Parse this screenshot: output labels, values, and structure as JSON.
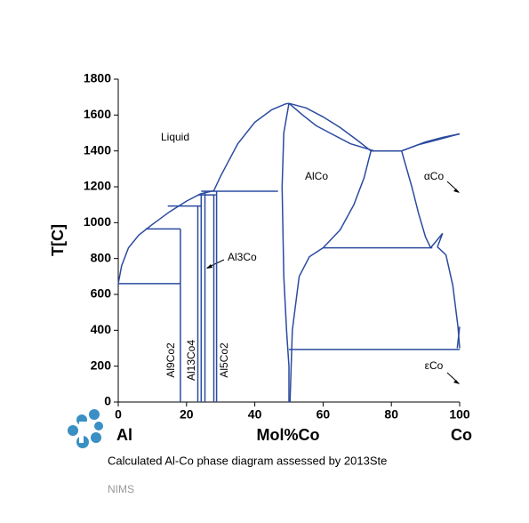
{
  "chart_data": {
    "type": "phase-diagram",
    "caption": "Calculated Al-Co phase diagram assessed by 2013Ste",
    "footer": "NIMS",
    "xlabel": "Mol%Co",
    "ylabel": "T[C]",
    "left_element": "Al",
    "right_element": "Co",
    "xlim": [
      0,
      100
    ],
    "ylim": [
      0,
      1800
    ],
    "xticks": [
      0,
      20,
      40,
      60,
      80,
      100
    ],
    "yticks": [
      0,
      200,
      400,
      600,
      800,
      1000,
      1200,
      1400,
      1600,
      1800
    ],
    "color": "#2b4ba0",
    "annotations": [
      "Liquid",
      "AlCo",
      "Al3Co",
      "αCo",
      "εCo",
      "Al9Co2",
      "Al13Co4",
      "Al5Co2"
    ],
    "lines": [
      {
        "x": [
          0,
          1,
          3,
          6,
          10,
          15,
          20,
          24,
          28,
          30,
          35,
          40,
          45,
          49,
          50
        ],
        "y": [
          660,
          760,
          860,
          930,
          990,
          1060,
          1120,
          1160,
          1178,
          1260,
          1440,
          1560,
          1630,
          1662,
          1665
        ]
      },
      {
        "x": [
          50,
          55,
          60,
          65,
          70,
          74
        ],
        "y": [
          1665,
          1640,
          1590,
          1530,
          1460,
          1400
        ]
      },
      {
        "x": [
          50,
          54,
          58,
          63,
          68,
          75
        ],
        "y": [
          1665,
          1600,
          1540,
          1490,
          1440,
          1400
        ]
      },
      {
        "x": [
          74,
          83
        ],
        "y": [
          1400,
          1400
        ]
      },
      {
        "x": [
          83,
          88,
          94,
          100
        ],
        "y": [
          1400,
          1435,
          1465,
          1495
        ]
      },
      {
        "x": [
          83,
          90,
          95,
          100
        ],
        "y": [
          1400,
          1450,
          1475,
          1495
        ]
      },
      {
        "x": [
          50,
          48.5,
          48,
          48.5,
          49.3,
          50,
          50
        ],
        "y": [
          1665,
          1500,
          1200,
          700,
          400,
          200,
          0
        ]
      },
      {
        "x": [
          50.3,
          51,
          53,
          56,
          60
        ],
        "y": [
          0,
          400,
          700,
          810,
          860
        ]
      },
      {
        "x": [
          60,
          65,
          69,
          72,
          74
        ],
        "y": [
          860,
          960,
          1100,
          1250,
          1400
        ]
      },
      {
        "x": [
          83,
          86,
          88,
          90,
          91.5
        ],
        "y": [
          1400,
          1200,
          1050,
          920,
          860
        ]
      },
      {
        "x": [
          91.5,
          95,
          93.5
        ],
        "y": [
          860,
          940,
          865
        ]
      },
      {
        "x": [
          93.5,
          96,
          98,
          99.5,
          100
        ],
        "y": [
          865,
          820,
          650,
          420,
          300
        ]
      },
      {
        "x": [
          99.3,
          100
        ],
        "y": [
          300,
          420
        ]
      },
      {
        "x": [
          60,
          92
        ],
        "y": [
          860,
          860
        ]
      },
      {
        "x": [
          50,
          100
        ],
        "y": [
          293,
          293
        ]
      },
      {
        "x": [
          0,
          18.2
        ],
        "y": [
          660,
          660
        ]
      },
      {
        "x": [
          8,
          18.2
        ],
        "y": [
          965,
          965
        ]
      },
      {
        "x": [
          14.5,
          24.5
        ],
        "y": [
          1093,
          1093
        ]
      },
      {
        "x": [
          23.5,
          28.6
        ],
        "y": [
          1155,
          1155
        ]
      },
      {
        "x": [
          24.3,
          46.8
        ],
        "y": [
          1175,
          1175
        ]
      },
      {
        "x": [
          18.2,
          18.2
        ],
        "y": [
          0,
          965
        ]
      },
      {
        "x": [
          23.3,
          23.3
        ],
        "y": [
          0,
          1093
        ]
      },
      {
        "x": [
          24.3,
          24.3
        ],
        "y": [
          0,
          1155
        ]
      },
      {
        "x": [
          25.4,
          25.4
        ],
        "y": [
          0,
          1175
        ]
      },
      {
        "x": [
          28,
          28
        ],
        "y": [
          0,
          1155
        ]
      },
      {
        "x": [
          28.8,
          28.8
        ],
        "y": [
          0,
          1175
        ]
      }
    ]
  }
}
